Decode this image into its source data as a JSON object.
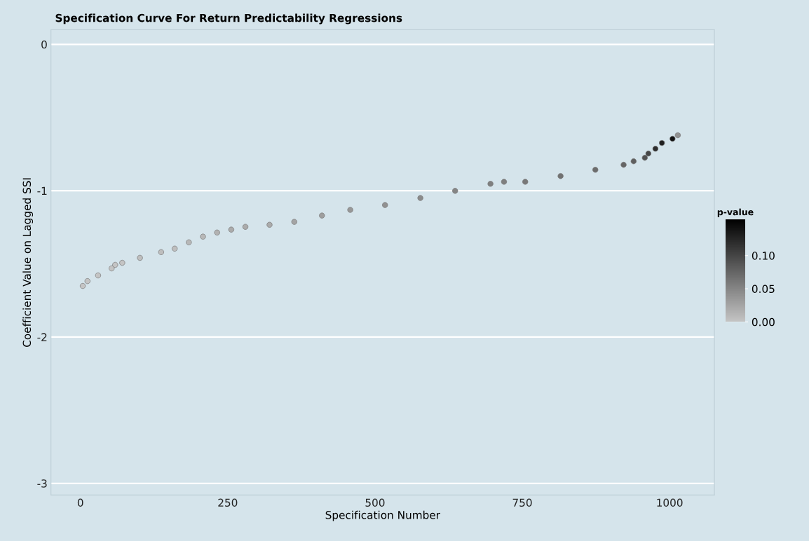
{
  "chart_data": {
    "type": "scatter",
    "title": "Specification Curve For Return Predictability Regressions",
    "xlabel": "Specification Number",
    "ylabel": "Coefficient Value on Lagged SSI",
    "clabel": "p-value",
    "x": [
      4,
      12,
      30,
      53,
      59,
      71,
      101,
      137,
      160,
      184,
      208,
      232,
      256,
      280,
      321,
      363,
      410,
      458,
      517,
      577,
      636,
      696,
      719,
      755,
      815,
      874,
      922,
      939,
      958,
      964,
      976,
      987,
      1005,
      1014
    ],
    "values": [
      -1.651,
      -1.618,
      -1.579,
      -1.531,
      -1.507,
      -1.493,
      -1.459,
      -1.42,
      -1.396,
      -1.353,
      -1.314,
      -1.286,
      -1.266,
      -1.247,
      -1.233,
      -1.213,
      -1.17,
      -1.131,
      -1.098,
      -1.05,
      -1.001,
      -0.953,
      -0.939,
      -0.939,
      -0.9,
      -0.857,
      -0.823,
      -0.799,
      -0.775,
      -0.746,
      -0.713,
      -0.674,
      -0.645,
      -0.621
    ],
    "cvalues": [
      0.0,
      0.0,
      0.0,
      0.0,
      0.0,
      0.0,
      0.005,
      0.005,
      0.005,
      0.01,
      0.01,
      0.015,
      0.02,
      0.02,
      0.02,
      0.025,
      0.03,
      0.035,
      0.04,
      0.045,
      0.05,
      0.055,
      0.055,
      0.06,
      0.065,
      0.07,
      0.075,
      0.08,
      0.09,
      0.1,
      0.12,
      0.13,
      0.14,
      0.04
    ],
    "xticks": [
      0,
      250,
      500,
      750,
      1000
    ],
    "yticks": [
      0,
      -1,
      -2,
      -3
    ],
    "xlim": [
      -50,
      1076
    ],
    "ylim": [
      -3.08,
      0.1
    ],
    "clim": [
      0,
      0.155
    ],
    "cticks": [
      {
        "value": 0,
        "label": "0.00"
      },
      {
        "value": 0.05,
        "label": "0.05"
      },
      {
        "value": 0.1,
        "label": "0.10"
      }
    ],
    "grid": "y",
    "marker": "circle"
  }
}
